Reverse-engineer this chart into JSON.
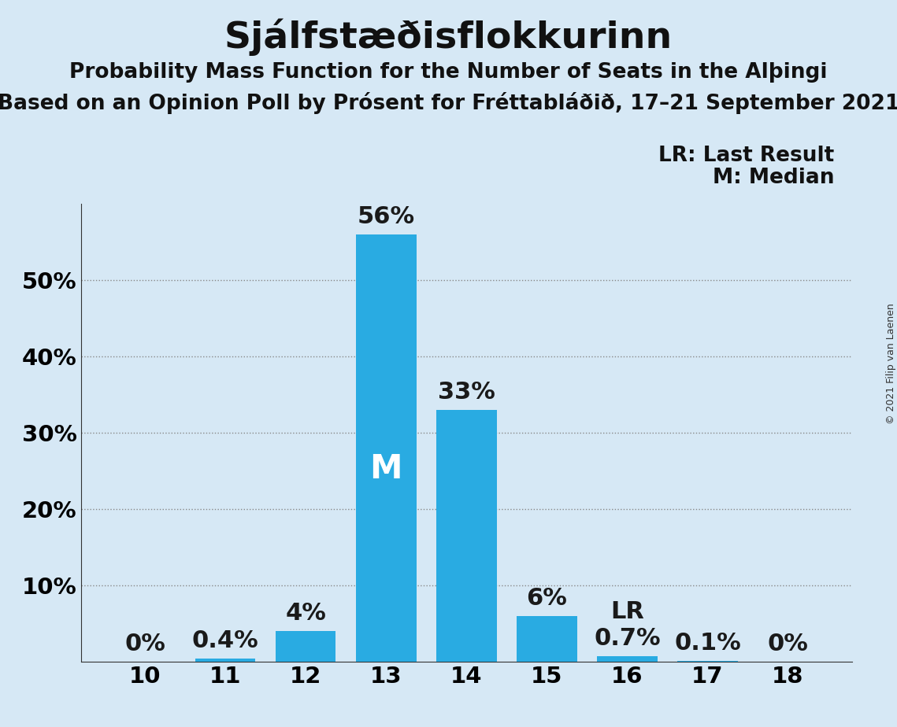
{
  "title": "Sjálfstæðisflokkurinn",
  "subtitle1": "Probability Mass Function for the Number of Seats in the Alþingi",
  "subtitle2": "Based on an Opinion Poll by Prósent for Fréttabláðið, 17–21 September 2021",
  "copyright": "© 2021 Filip van Laenen",
  "seats": [
    10,
    11,
    12,
    13,
    14,
    15,
    16,
    17,
    18
  ],
  "probabilities": [
    0.0,
    0.4,
    4.0,
    56.0,
    33.0,
    6.0,
    0.7,
    0.1,
    0.0
  ],
  "labels": [
    "0%",
    "0.4%",
    "4%",
    "56%",
    "33%",
    "6%",
    "0.7%",
    "0.1%",
    "0%"
  ],
  "show_label": [
    true,
    true,
    true,
    true,
    true,
    true,
    true,
    true,
    true
  ],
  "bar_color": "#29ABE2",
  "background_color": "#D6E8F5",
  "median_seat": 13,
  "last_result_seat": 16,
  "legend_lr": "LR: Last Result",
  "legend_m": "M: Median",
  "ylim_max": 60,
  "ytick_positions": [
    10,
    20,
    30,
    40,
    50
  ],
  "ytick_labels": [
    "10%",
    "20%",
    "30%",
    "40%",
    "50%"
  ],
  "grid_lines": [
    10,
    20,
    30,
    40,
    50
  ],
  "title_fontsize": 34,
  "subtitle_fontsize": 19,
  "bar_label_fontsize": 22,
  "tick_fontsize": 21,
  "legend_fontsize": 19,
  "m_label_fontsize": 30,
  "lr_fontsize": 22,
  "copyright_fontsize": 9,
  "bar_width": 0.75
}
